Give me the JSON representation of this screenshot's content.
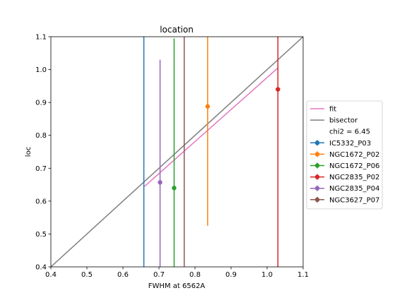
{
  "chart_data": {
    "type": "scatter",
    "title": "location",
    "xlabel": "FWHM at 6562A",
    "ylabel": "loc",
    "xlim": [
      0.4,
      1.1
    ],
    "ylim": [
      0.4,
      1.1
    ],
    "xticks": [
      "0.4",
      "0.5",
      "0.6",
      "0.7",
      "0.8",
      "0.9",
      "1.0",
      "1.1"
    ],
    "yticks": [
      "0.4",
      "0.5",
      "0.6",
      "0.7",
      "0.8",
      "0.9",
      "1.0",
      "1.1"
    ],
    "grid": false,
    "legend_position": "center-right-outside",
    "lines": [
      {
        "name": "fit",
        "color": "#e377c2",
        "x": [
          0.66,
          1.03
        ],
        "y": [
          0.645,
          1.005
        ]
      },
      {
        "name": "bisector",
        "color": "#7f7f7f",
        "x": [
          0.4,
          1.1
        ],
        "y": [
          0.4,
          1.1
        ]
      }
    ],
    "legend_note": "chi2 = 6.45",
    "series": [
      {
        "name": "IC5332_P03",
        "color": "#1f77b4",
        "x": 0.658,
        "y": null,
        "yerr_low": 0.4,
        "yerr_high": 1.1
      },
      {
        "name": "NGC1672_P02",
        "color": "#ff7f0e",
        "x": 0.835,
        "y": 0.888,
        "yerr_low": 0.525,
        "yerr_high": 1.1
      },
      {
        "name": "NGC1672_P06",
        "color": "#2ca02c",
        "x": 0.742,
        "y": 0.64,
        "yerr_low": 0.4,
        "yerr_high": 1.095
      },
      {
        "name": "NGC2835_P02",
        "color": "#d62728",
        "x": 1.03,
        "y": 0.94,
        "yerr_low": 0.4,
        "yerr_high": 1.1
      },
      {
        "name": "NGC2835_P04",
        "color": "#9467bd",
        "x": 0.703,
        "y": 0.657,
        "yerr_low": 0.4,
        "yerr_high": 1.03
      },
      {
        "name": "NGC3627_P07",
        "color": "#8c564b",
        "x": 0.77,
        "y": null,
        "yerr_low": 0.4,
        "yerr_high": 1.1
      }
    ]
  }
}
